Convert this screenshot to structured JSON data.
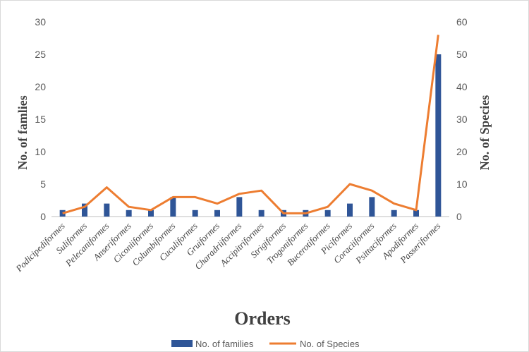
{
  "chart_data": {
    "type": "bar+line",
    "xlabel": "Orders",
    "ylabel_left": "No. of famlies",
    "ylabel_right": "No. of  Species",
    "ylim_left": [
      0,
      30
    ],
    "ylim_right": [
      0,
      60
    ],
    "yticks_left": [
      0,
      5,
      10,
      15,
      20,
      25,
      30
    ],
    "yticks_right": [
      0,
      10,
      20,
      30,
      40,
      50,
      60
    ],
    "categories": [
      "Podicipediformes",
      "Suliformes",
      "Pelecaniformes",
      "Anseriformes",
      "Ciconiiformes",
      "Columbiformes",
      "Cuculiformes",
      "Gruiformes",
      "Charadriiformes",
      "Accipitriformes",
      "Strigiformes",
      "Trogoniformes",
      "Bucerotiformes",
      "Piciformes",
      "Coraciiformes",
      "Psittaciformes",
      "Apodiformes",
      "Passeriformes"
    ],
    "series": [
      {
        "name": "No. of families",
        "type": "bar",
        "axis": "left",
        "color": "#2f5597",
        "values": [
          1,
          2,
          2,
          1,
          1,
          3,
          1,
          1,
          3,
          1,
          1,
          1,
          1,
          2,
          3,
          1,
          1,
          25
        ]
      },
      {
        "name": "No. of Species",
        "type": "line",
        "axis": "right",
        "color": "#ed7d31",
        "values": [
          1,
          3,
          9,
          3,
          2,
          6,
          6,
          4,
          7,
          8,
          1,
          1,
          3,
          10,
          8,
          4,
          2,
          56
        ]
      }
    ],
    "grid": false,
    "legend": "bottom"
  }
}
